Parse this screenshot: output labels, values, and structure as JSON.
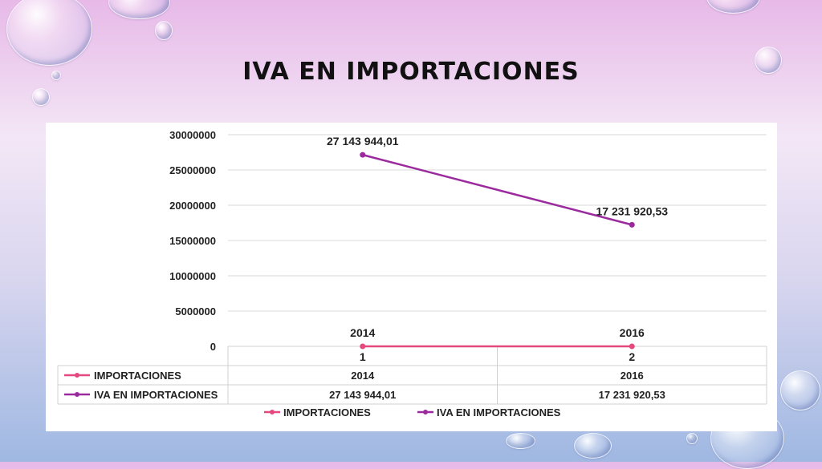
{
  "slide": {
    "title": "IVA EN IMPORTACIONES"
  },
  "chart_data": {
    "type": "line",
    "categories": [
      "1",
      "2"
    ],
    "series": [
      {
        "name": "IMPORTACIONES",
        "values": [
          2014,
          2016
        ],
        "labels": [
          "2014",
          "2016"
        ],
        "color": "#e4487e"
      },
      {
        "name": "IVA EN IMPORTACIONES",
        "values": [
          27143944.01,
          17231920.53
        ],
        "labels": [
          "27 143 944,01",
          "17 231 920,53"
        ],
        "color": "#9b2a9e"
      }
    ],
    "y_ticks": [
      "0",
      "5000000",
      "10000000",
      "15000000",
      "20000000",
      "25000000",
      "30000000"
    ],
    "ylim": [
      0,
      30000000
    ],
    "grid": true,
    "data_table": {
      "rows": [
        {
          "series": "IMPORTACIONES",
          "cells": [
            "2014",
            "2016"
          ]
        },
        {
          "series": "IVA EN IMPORTACIONES",
          "cells": [
            "27 143 944,01",
            "17 231 920,53"
          ]
        }
      ]
    },
    "legend": {
      "position": "bottom",
      "entries": [
        "IMPORTACIONES",
        "IVA EN IMPORTACIONES"
      ]
    }
  }
}
